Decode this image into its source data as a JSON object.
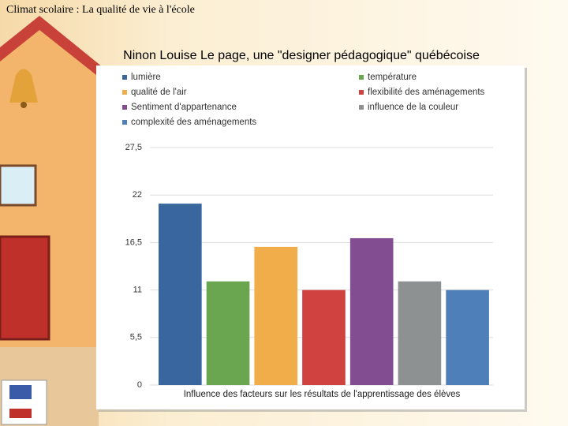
{
  "header": {
    "title": "Climat scolaire : La qualité de vie à l'école"
  },
  "chart_data": {
    "type": "bar",
    "title": "Ninon Louise Le page, une \"designer pédagogique\" québécoise",
    "x_label": "Influence des facteurs sur les résultats de l'apprentissage des élèves",
    "categories": [
      null
    ],
    "series": [
      {
        "name": "lumière",
        "color": "#3a66a0",
        "values": [
          21
        ]
      },
      {
        "name": "température",
        "color": "#6aa650",
        "values": [
          12
        ]
      },
      {
        "name": "qualité de l'air",
        "color": "#f0ad4a",
        "values": [
          16
        ]
      },
      {
        "name": "flexibilité des aménagements",
        "color": "#cf4240",
        "values": [
          11
        ]
      },
      {
        "name": "Sentiment d'appartenance",
        "color": "#824e91",
        "values": [
          17
        ]
      },
      {
        "name": "influence de la couleur",
        "color": "#8e9192",
        "values": [
          12
        ]
      },
      {
        "name": "complexité des aménagements",
        "color": "#4e7fb8",
        "values": [
          11
        ]
      }
    ],
    "ylim": [
      0,
      27.5
    ],
    "yticks": [
      0,
      {
        "value": 5.5,
        "label": "5,5"
      },
      11,
      {
        "value": 16.5,
        "label": "16,5"
      },
      22,
      {
        "value": 27.5,
        "label": "27,5"
      }
    ],
    "grid": true,
    "legend": "top"
  }
}
